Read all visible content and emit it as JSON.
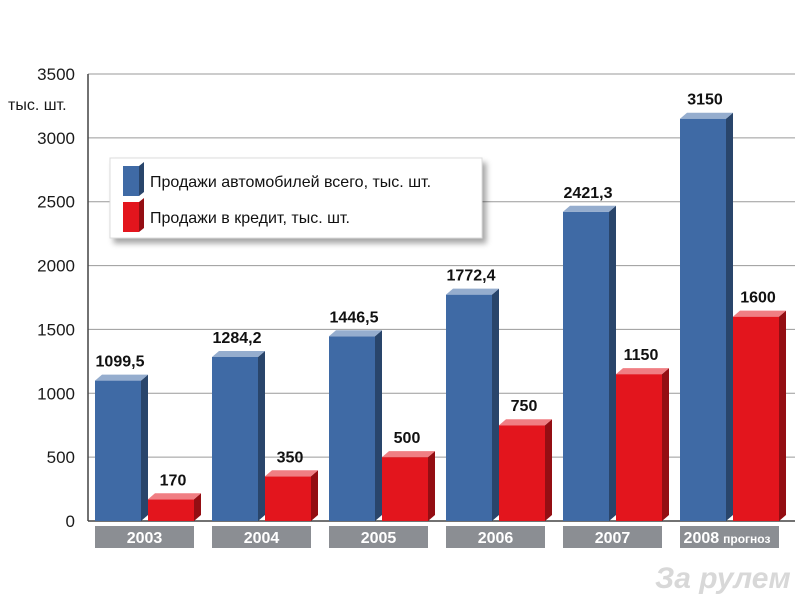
{
  "chart_data": {
    "type": "bar",
    "ylabel": "тыс. шт.",
    "ylim": [
      0,
      3500
    ],
    "yticks": [
      0,
      500,
      1000,
      1500,
      2000,
      2500,
      3000,
      3500
    ],
    "categories": [
      "2003",
      "2004",
      "2005",
      "2006",
      "2007",
      "2008"
    ],
    "last_category_suffix": "прогноз",
    "series": [
      {
        "name": "Продажи автомобилей  всего, тыс. шт.",
        "color": "#3f6aa5",
        "values": [
          1099.5,
          1284.2,
          1446.5,
          1772.4,
          2421.3,
          3150
        ],
        "labels": [
          "1099,5",
          "1284,2",
          "1446,5",
          "1772,4",
          "2421,3",
          "3150"
        ]
      },
      {
        "name": "Продажи в кредит, тыс. шт.",
        "color": "#e3151d",
        "values": [
          170,
          350,
          500,
          750,
          1150,
          1600
        ],
        "labels": [
          "170",
          "350",
          "500",
          "750",
          "1150",
          "1600"
        ]
      }
    ],
    "grid": true,
    "legend_position": "top-left"
  },
  "watermark": "За рулем"
}
